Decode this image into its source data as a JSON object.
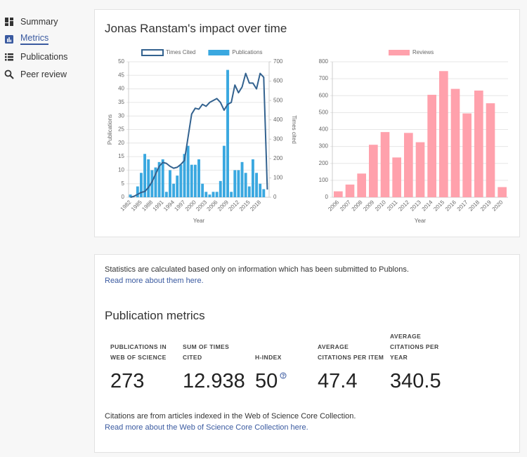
{
  "nav": [
    "Summary",
    "Metrics",
    "Publications",
    "Peer review"
  ],
  "impact": {
    "title": "Jonas Ranstam's impact over time"
  },
  "chart_data": [
    {
      "type": "bar",
      "categories": [
        1982,
        null,
        null,
        1985,
        null,
        null,
        1988,
        null,
        null,
        1991,
        null,
        null,
        1994,
        null,
        null,
        1997,
        null,
        null,
        2000,
        null,
        null,
        2003,
        null,
        null,
        2006,
        null,
        null,
        2009,
        null,
        null,
        2012,
        null,
        null,
        2015,
        null,
        null,
        2018,
        null,
        null
      ],
      "series": [
        {
          "name": "Times Cited",
          "type": "line",
          "axis": "y2",
          "color": "#33628f",
          "values": [
            0,
            5,
            15,
            25,
            30,
            50,
            80,
            120,
            160,
            180,
            175,
            160,
            150,
            155,
            170,
            190,
            310,
            430,
            460,
            455,
            480,
            470,
            490,
            500,
            510,
            490,
            450,
            480,
            490,
            580,
            540,
            570,
            640,
            590,
            590,
            560,
            640,
            620,
            40
          ]
        },
        {
          "name": "Publications",
          "type": "bar",
          "color": "#3aa8e0",
          "values": [
            1,
            0,
            4,
            9,
            16,
            14,
            10,
            11,
            13,
            14,
            2,
            10,
            5,
            8,
            12,
            16,
            19,
            12,
            12,
            14,
            5,
            2,
            1,
            2,
            2,
            6,
            19,
            47,
            2,
            10,
            10,
            13,
            9,
            4,
            14,
            9,
            5,
            3,
            0
          ]
        }
      ],
      "ylim": [
        0,
        50
      ],
      "yticks": [
        0,
        5,
        10,
        15,
        20,
        25,
        30,
        35,
        40,
        45,
        50
      ],
      "y2lim": [
        0,
        700
      ],
      "y2ticks": [
        0,
        100,
        200,
        300,
        400,
        500,
        600,
        700
      ],
      "y_label": "Publications",
      "y2_label": "Times cited",
      "x_label": "Year",
      "grid": true,
      "legend": "top"
    },
    {
      "type": "bar",
      "categories": [
        2006,
        2007,
        2008,
        2009,
        2010,
        2011,
        2012,
        2013,
        2014,
        2015,
        2016,
        2017,
        2018,
        2019,
        2020
      ],
      "series": [
        {
          "name": "Reviews",
          "type": "bar",
          "color": "#ffa1ac",
          "values": [
            35,
            75,
            140,
            310,
            385,
            235,
            380,
            325,
            605,
            745,
            640,
            495,
            630,
            555,
            60
          ]
        }
      ],
      "ylim": [
        0,
        800
      ],
      "yticks": [
        0,
        100,
        200,
        300,
        400,
        500,
        600,
        700,
        800
      ],
      "x_label": "Year",
      "grid": true,
      "legend": "top"
    }
  ],
  "stats": {
    "note": "Statistics are calculated based only on information which has been submitted to Publons.",
    "note_link": "Read more about them here.",
    "heading": "Publication metrics",
    "metrics": [
      {
        "label": "PUBLICATIONS IN WEB OF SCIENCE",
        "value": "273"
      },
      {
        "label": "SUM OF TIMES CITED",
        "value": "12.938"
      },
      {
        "label": "H-INDEX",
        "value": "50"
      },
      {
        "label": "AVERAGE CITATIONS PER ITEM",
        "value": "47.4"
      },
      {
        "label": "AVERAGE CITATIONS PER YEAR",
        "value": "340.5"
      }
    ],
    "footer": "Citations are from articles indexed in the Web of Science Core Collection.",
    "footer_link": "Read more about the Web of Science Core Collection here."
  }
}
